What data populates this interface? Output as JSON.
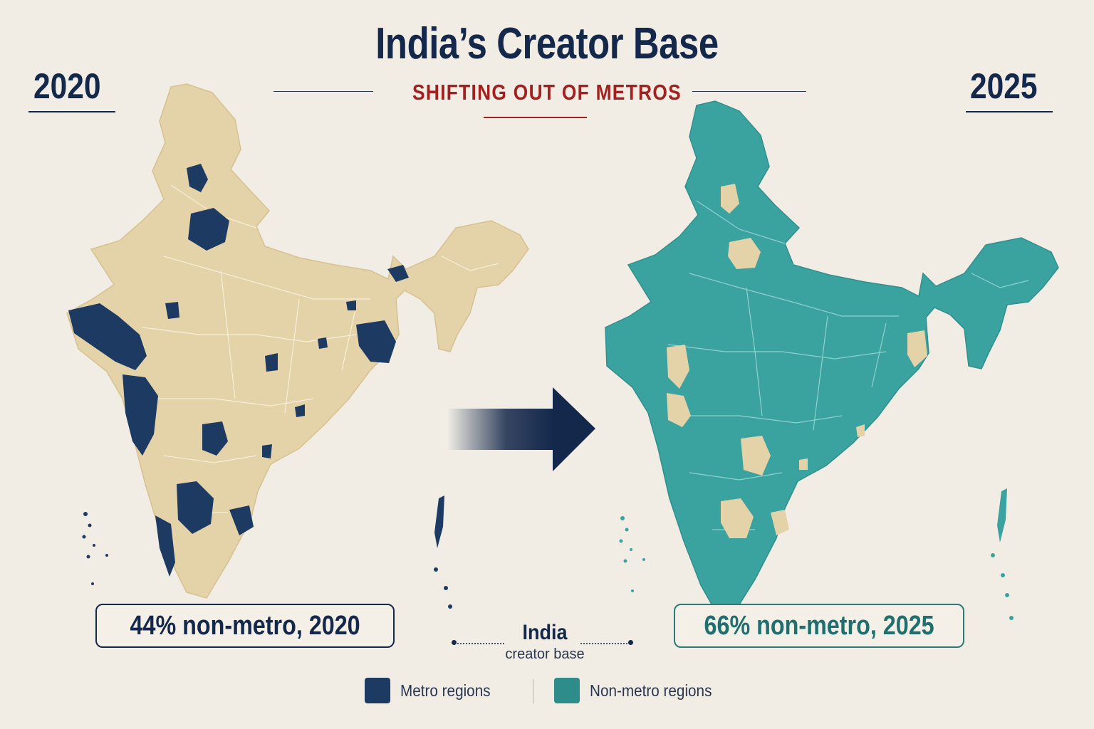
{
  "header": {
    "title": "India’s Creator Base",
    "subtitle": "SHIFTING OUT OF METROS"
  },
  "left_panel": {
    "year": "2020",
    "stat_label": "44% non-metro, 2020",
    "non_metro_share_percent": 44,
    "base_color": "#e4d2a8",
    "highlight_color": "#1d3a63"
  },
  "right_panel": {
    "year": "2025",
    "stat_label": "66% non-metro, 2025",
    "non_metro_share_percent": 66,
    "base_color": "#3aa3a0",
    "highlight_color": "#e4d2a8"
  },
  "center": {
    "name": "India",
    "sub": "creator base",
    "arrow_icon": "right-arrow-icon"
  },
  "legend": {
    "items": [
      {
        "label": "Metro regions",
        "color": "#1d3a63"
      },
      {
        "label": "Non-metro regions",
        "color": "#2e8c8a"
      }
    ]
  }
}
